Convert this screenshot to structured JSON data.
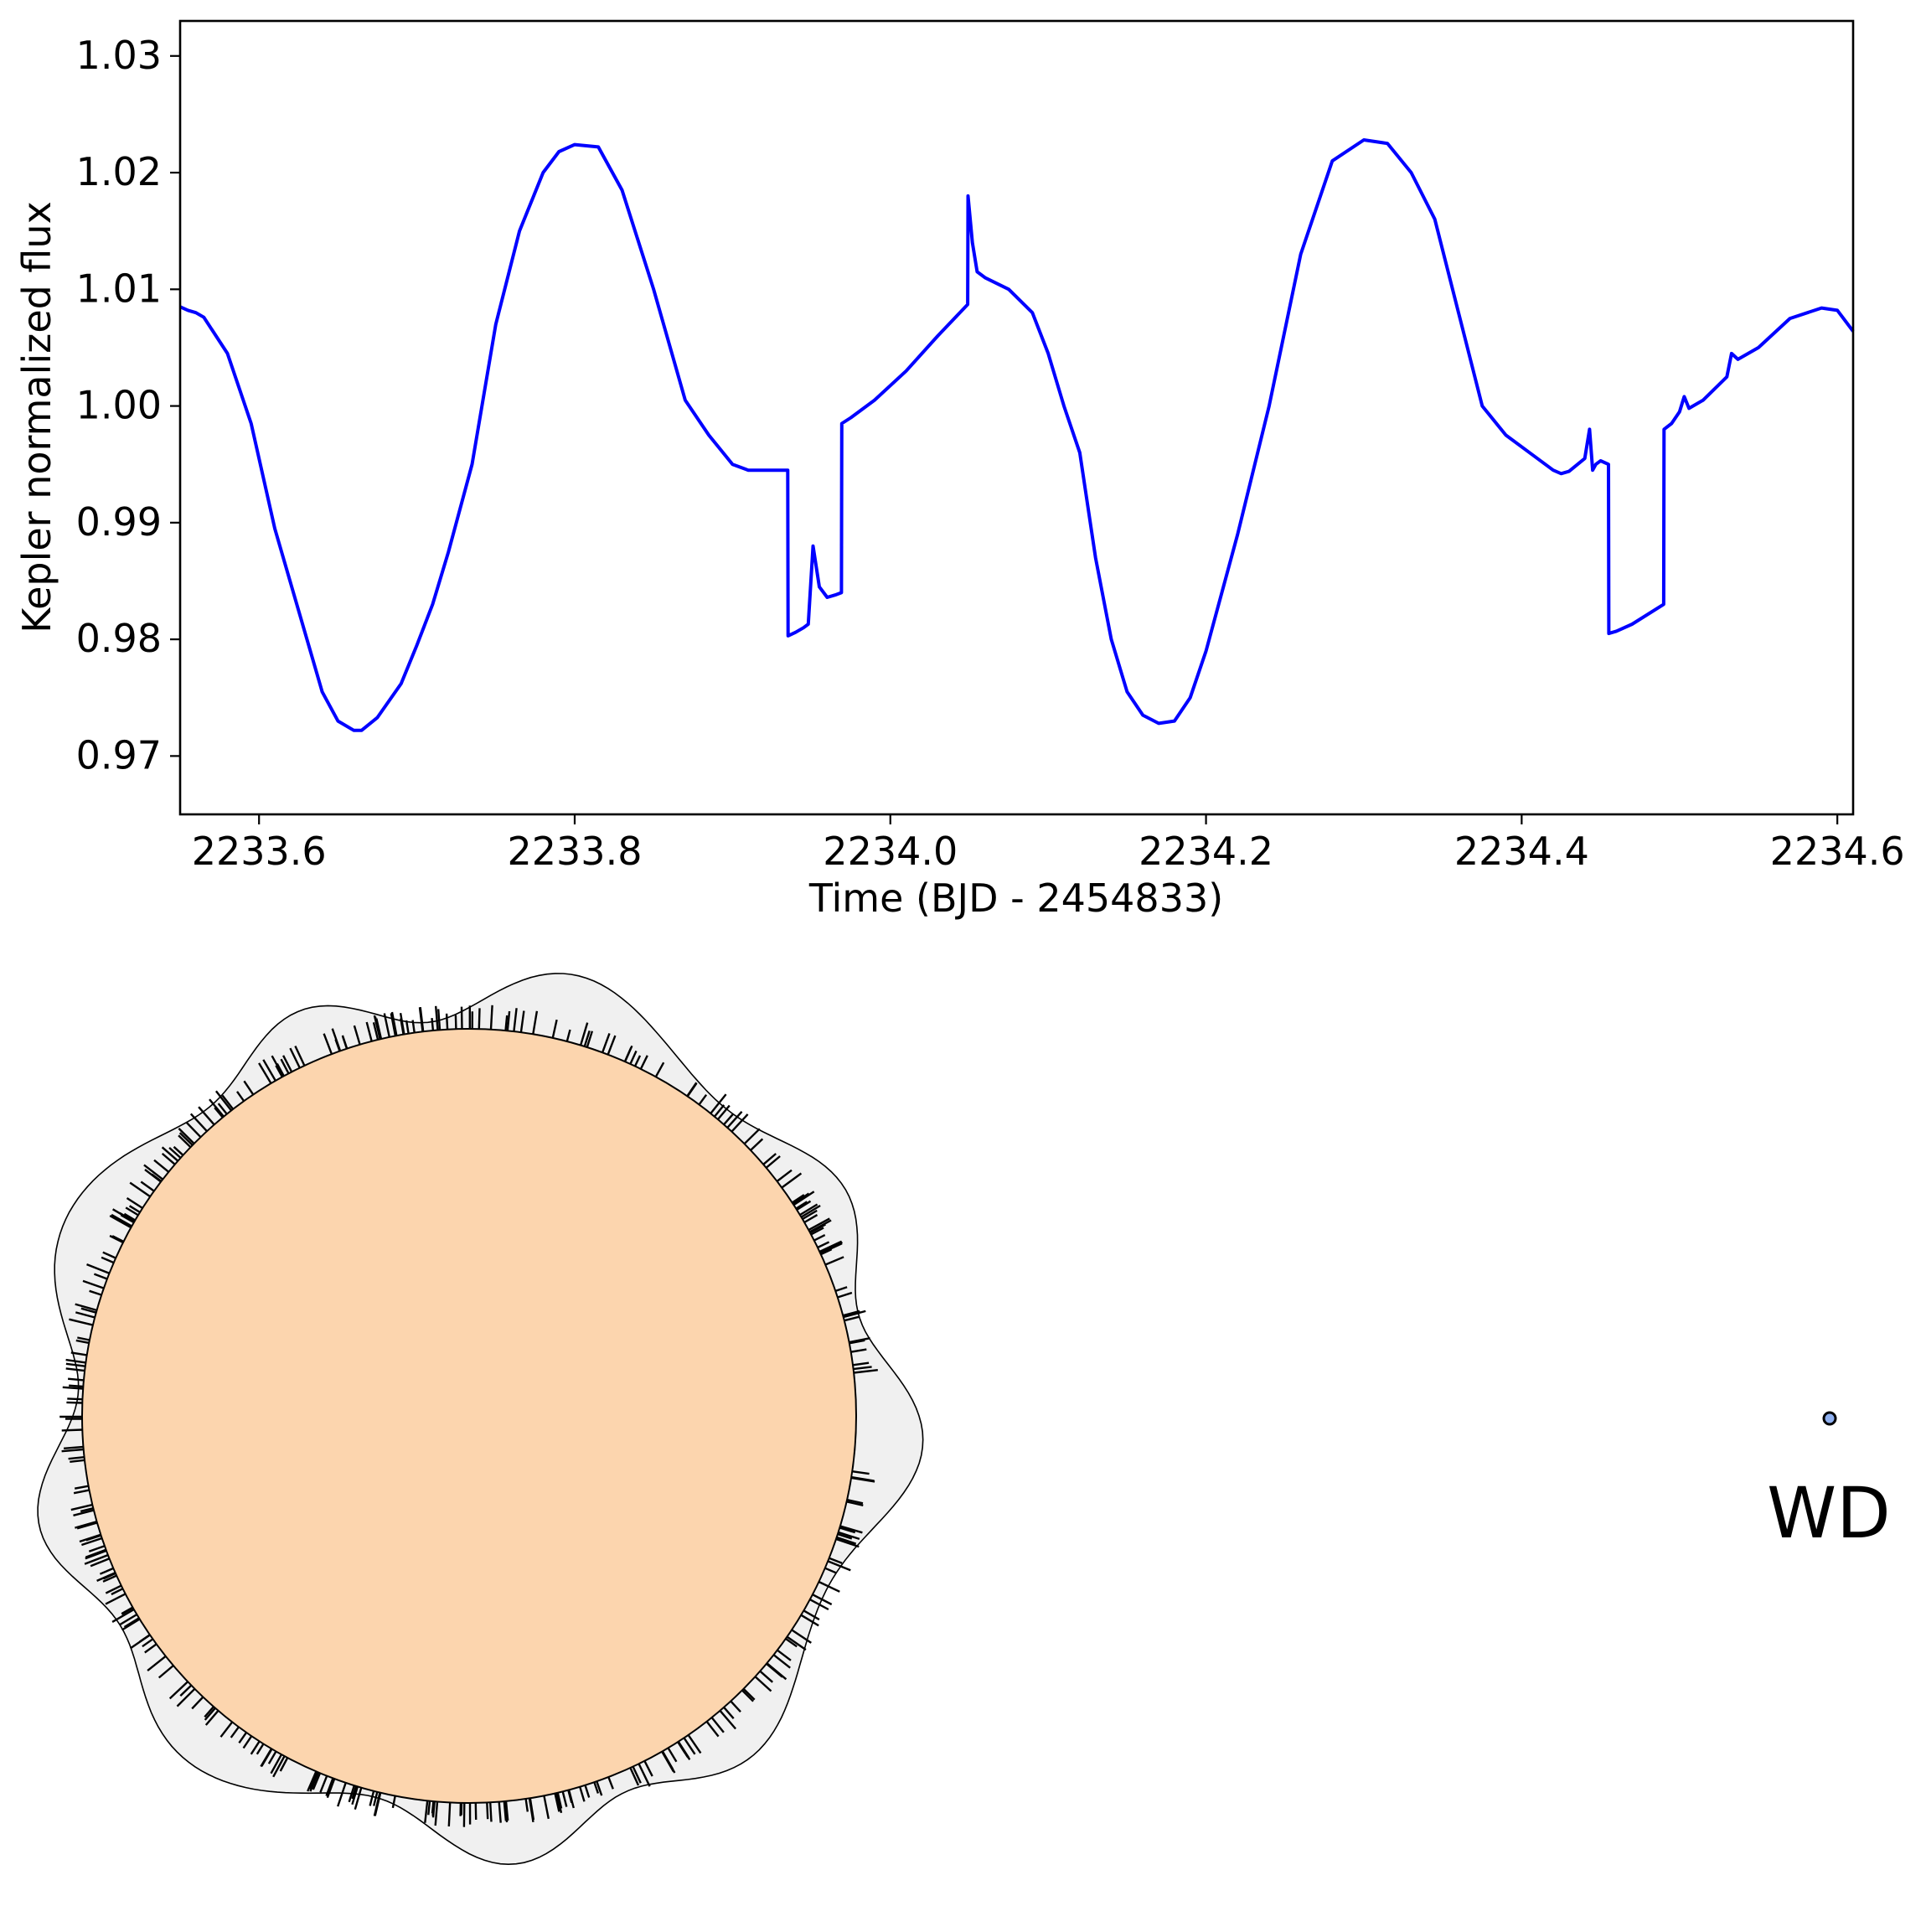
{
  "chart_data": [
    {
      "type": "line",
      "title": "",
      "xlabel": "Time (BJD - 2454833)",
      "ylabel": "Kepler normalized flux",
      "xlim": [
        2233.55,
        2234.61
      ],
      "ylim": [
        0.965,
        1.033
      ],
      "xticks": [
        2233.6,
        2233.8,
        2234.0,
        2234.2,
        2234.4,
        2234.6
      ],
      "xtick_labels": [
        "2233.6",
        "2233.8",
        "2234.0",
        "2234.2",
        "2234.4",
        "2234.6"
      ],
      "yticks": [
        0.97,
        0.98,
        0.99,
        1.0,
        1.01,
        1.02,
        1.03
      ],
      "ytick_labels": [
        "0.97",
        "0.98",
        "0.99",
        "1.00",
        "1.01",
        "1.02",
        "1.03"
      ],
      "grid": false,
      "legend": "none",
      "series": [
        {
          "color": "#0000ff",
          "x": [
            2233.55,
            2233.555,
            2233.56,
            2233.565,
            2233.58,
            2233.595,
            2233.61,
            2233.625,
            2233.64,
            2233.65,
            2233.66,
            2233.665,
            2233.675,
            2233.69,
            2233.7,
            2233.71,
            2233.72,
            2233.735,
            2233.75,
            2233.765,
            2233.78,
            2233.79,
            2233.8,
            2233.815,
            2233.83,
            2233.85,
            2233.87,
            2233.885,
            2233.9,
            2233.91,
            2233.92,
            2233.93,
            2233.935,
            2233.9352,
            2233.94,
            2233.945,
            2233.948,
            2233.951,
            2233.955,
            2233.96,
            2233.965,
            2233.969,
            2233.9692,
            2233.975,
            2233.99,
            2234.01,
            2234.03,
            2234.049,
            2234.0492,
            2234.052,
            2234.055,
            2234.06,
            2234.075,
            2234.09,
            2234.1,
            2234.11,
            2234.12,
            2234.13,
            2234.14,
            2234.15,
            2234.16,
            2234.17,
            2234.18,
            2234.19,
            2234.2,
            2234.22,
            2234.24,
            2234.26,
            2234.28,
            2234.3,
            2234.315,
            2234.33,
            2234.345,
            2234.36,
            2234.375,
            2234.39,
            2234.405,
            2234.42,
            2234.425,
            2234.43,
            2234.44,
            2234.443,
            2234.445,
            2234.447,
            2234.45,
            2234.455,
            2234.4552,
            2234.46,
            2234.47,
            2234.49,
            2234.4902,
            2234.495,
            2234.5,
            2234.503,
            2234.506,
            2234.515,
            2234.53,
            2234.533,
            2234.537,
            2234.55,
            2234.57,
            2234.59,
            2234.6,
            2234.61
          ],
          "y": [
            1.0085,
            1.0082,
            1.008,
            1.0076,
            1.0045,
            0.9985,
            0.9895,
            0.9825,
            0.9755,
            0.973,
            0.9722,
            0.9722,
            0.9733,
            0.9762,
            0.9795,
            0.983,
            0.9875,
            0.995,
            1.007,
            1.015,
            1.02,
            1.0218,
            1.0224,
            1.0222,
            1.0185,
            1.01,
            1.0005,
            0.9975,
            0.995,
            0.9945,
            0.9945,
            0.9945,
            0.9945,
            0.9803,
            0.9806,
            0.981,
            0.9813,
            0.988,
            0.9845,
            0.9836,
            0.9838,
            0.984,
            0.9985,
            0.999,
            1.0005,
            1.003,
            1.006,
            1.0087,
            1.018,
            1.014,
            1.0115,
            1.011,
            1.01,
            1.008,
            1.0045,
            1.0,
            0.996,
            0.987,
            0.98,
            0.9755,
            0.9735,
            0.9728,
            0.973,
            0.975,
            0.979,
            0.989,
            1.0,
            1.013,
            1.021,
            1.0228,
            1.0225,
            1.02,
            1.016,
            1.008,
            1.0,
            0.9975,
            0.996,
            0.9945,
            0.9942,
            0.9944,
            0.9955,
            0.998,
            0.9945,
            0.995,
            0.9953,
            0.995,
            0.9805,
            0.9807,
            0.9813,
            0.983,
            0.998,
            0.9985,
            0.9995,
            1.0008,
            0.9998,
            1.0005,
            1.0025,
            1.0045,
            1.004,
            1.005,
            1.0075,
            1.0084,
            1.0082,
            1.0064
          ]
        }
      ]
    },
    {
      "type": "diagram",
      "labels": [
        "WD"
      ],
      "colors": {
        "star_fill": "#fcd5ae",
        "halo_fill": "#f0f0f0",
        "wd_fill": "#8fb0f0",
        "line": "#000000"
      }
    }
  ]
}
